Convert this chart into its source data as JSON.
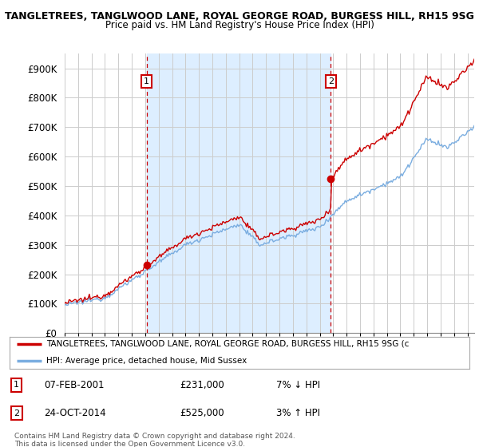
{
  "title1": "TANGLETREES, TANGLWOOD LANE, ROYAL GEORGE ROAD, BURGESS HILL, RH15 9SG",
  "title2": "Price paid vs. HM Land Registry's House Price Index (HPI)",
  "ylim": [
    0,
    950000
  ],
  "yticks": [
    0,
    100000,
    200000,
    300000,
    400000,
    500000,
    600000,
    700000,
    800000,
    900000
  ],
  "ytick_labels": [
    "£0",
    "£100K",
    "£200K",
    "£300K",
    "£400K",
    "£500K",
    "£600K",
    "£700K",
    "£800K",
    "£900K"
  ],
  "red_line_color": "#cc0000",
  "blue_line_color": "#7aade0",
  "sale1_date_num": 2001.1,
  "sale1_price": 231000,
  "sale1_label": "1",
  "sale1_date_str": "07-FEB-2001",
  "sale1_price_str": "£231,000",
  "sale1_hpi_str": "7% ↓ HPI",
  "sale2_date_num": 2014.82,
  "sale2_price": 525000,
  "sale2_label": "2",
  "sale2_date_str": "24-OCT-2014",
  "sale2_price_str": "£525,000",
  "sale2_hpi_str": "3% ↑ HPI",
  "vline_color": "#cc0000",
  "shade_color": "#ddeeff",
  "background_color": "#ffffff",
  "grid_color": "#cccccc",
  "legend_line1": "TANGLETREES, TANGLWOOD LANE, ROYAL GEORGE ROAD, BURGESS HILL, RH15 9SG (c",
  "legend_line2": "HPI: Average price, detached house, Mid Sussex",
  "footnote": "Contains HM Land Registry data © Crown copyright and database right 2024.\nThis data is licensed under the Open Government Licence v3.0.",
  "xmin": 1995.0,
  "xmax": 2025.5
}
